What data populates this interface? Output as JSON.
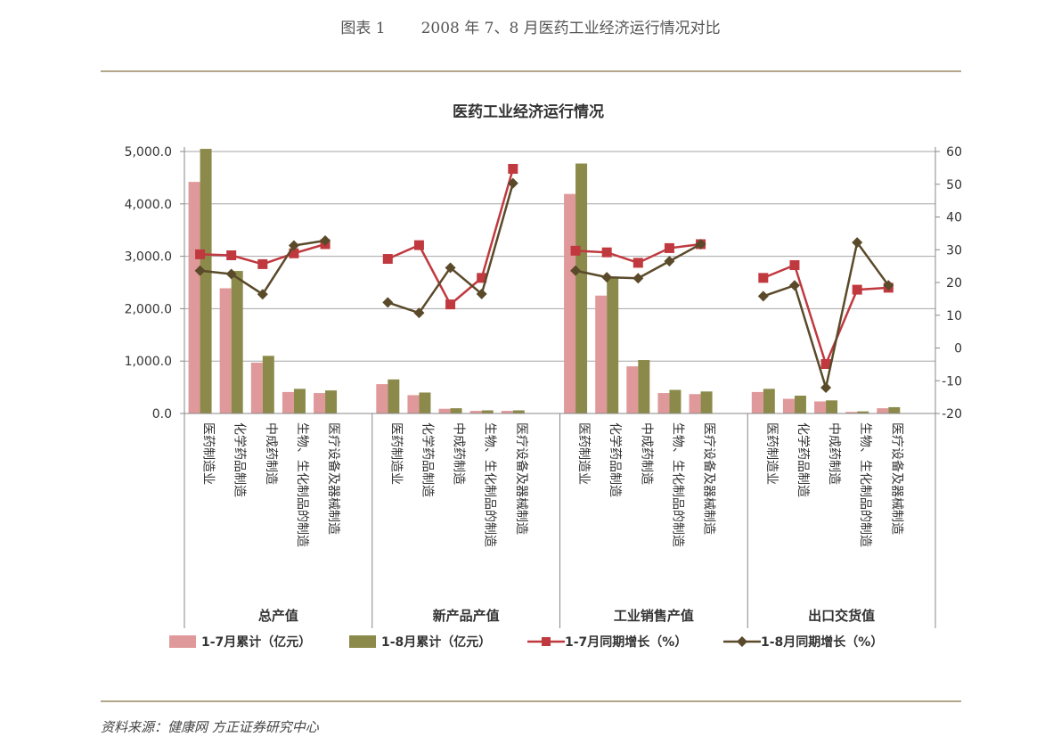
{
  "figure": {
    "caption_label": "图表 1",
    "caption_text": "2008 年 7、8 月医药工业经济运行情况对比",
    "source": "资料来源：健康网  方正证券研究中心"
  },
  "colors": {
    "bar_jul": "#e0999b",
    "bar_aug": "#8b8a4a",
    "line_jul": "#c0393f",
    "line_aug": "#5a4a2a",
    "rule": "#b3a68a",
    "grid": "#a6a6a6"
  },
  "chart_data": {
    "type": "bar+line",
    "title": "医药工业经济运行情况",
    "groups": [
      "总产值",
      "新产品产值",
      "工业销售产值",
      "出口交货值"
    ],
    "categories": [
      "医药制造业",
      "化学药品制造",
      "中成药制造",
      "生物、生化制品的制造",
      "医疗设备及器械制造"
    ],
    "y_left": {
      "min": 0,
      "max": 5000,
      "step": 1000,
      "ticks": [
        "0.0",
        "1,000.0",
        "2,000.0",
        "3,000.0",
        "4,000.0",
        "5,000.0"
      ]
    },
    "y_right": {
      "min": -20,
      "max": 60,
      "step": 10,
      "ticks": [
        "-20",
        "-10",
        "0",
        "10",
        "20",
        "30",
        "40",
        "50",
        "60"
      ]
    },
    "grid": true,
    "legend_position": "bottom",
    "series": [
      {
        "name": "1-7月累计（亿元）",
        "kind": "bar",
        "axis": "left",
        "values": [
          [
            4420,
            2390,
            970,
            410,
            390
          ],
          [
            560,
            350,
            90,
            50,
            50
          ],
          [
            4190,
            2250,
            900,
            390,
            370
          ],
          [
            410,
            280,
            230,
            30,
            100
          ]
        ]
      },
      {
        "name": "1-8月累计（亿元）",
        "kind": "bar",
        "axis": "left",
        "values": [
          [
            5050,
            2720,
            1100,
            470,
            440
          ],
          [
            650,
            400,
            100,
            60,
            60
          ],
          [
            4770,
            2590,
            1020,
            450,
            420
          ],
          [
            470,
            340,
            250,
            40,
            120
          ]
        ]
      },
      {
        "name": "1-7月同期增长（%）",
        "kind": "line",
        "axis": "right",
        "values": [
          [
            28.6,
            28.3,
            25.6,
            28.9,
            31.7
          ],
          [
            27.2,
            31.4,
            13.3,
            21.4,
            54.7
          ],
          [
            29.7,
            29.2,
            26.0,
            30.5,
            31.7
          ],
          [
            21.4,
            25.3,
            -4.9,
            17.8,
            18.4
          ]
        ]
      },
      {
        "name": "1-8月同期增长（%）",
        "kind": "line",
        "axis": "right",
        "values": [
          [
            23.6,
            22.6,
            16.4,
            31.3,
            32.8
          ],
          [
            13.9,
            10.7,
            24.5,
            16.5,
            50.3
          ],
          [
            23.6,
            21.6,
            21.3,
            26.5,
            31.7
          ],
          [
            15.8,
            19.1,
            -12.1,
            32.2,
            19.1
          ]
        ]
      }
    ]
  }
}
